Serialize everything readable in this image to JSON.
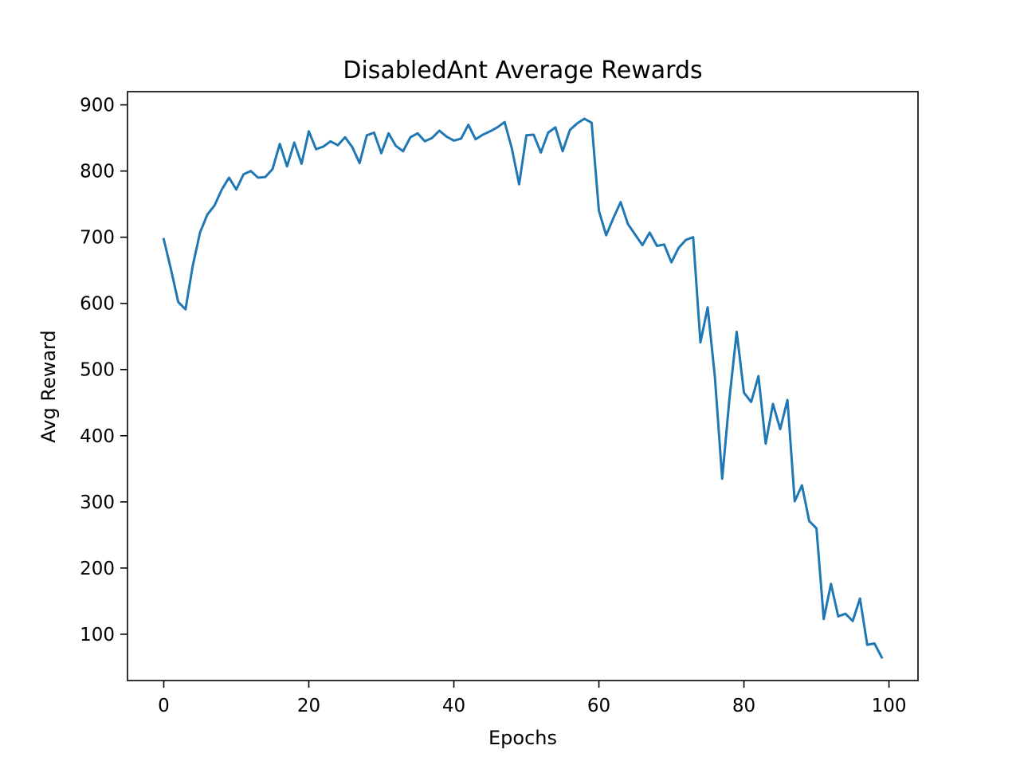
{
  "chart_data": {
    "type": "line",
    "title": "DisabledAnt Average Rewards",
    "xlabel": "Epochs",
    "ylabel": "Avg Reward",
    "xlim": [
      -5,
      104
    ],
    "ylim": [
      30,
      920
    ],
    "xticks": [
      0,
      20,
      40,
      60,
      80,
      100
    ],
    "yticks": [
      100,
      200,
      300,
      400,
      500,
      600,
      700,
      800,
      900
    ],
    "xtick_labels": [
      "0",
      "20",
      "40",
      "60",
      "80",
      "100"
    ],
    "ytick_labels": [
      "100",
      "200",
      "300",
      "400",
      "500",
      "600",
      "700",
      "800",
      "900"
    ],
    "grid": false,
    "series": [
      {
        "name": "Avg Reward",
        "color": "#1f77b4",
        "x": [
          0,
          1,
          2,
          3,
          4,
          5,
          6,
          7,
          8,
          9,
          10,
          11,
          12,
          13,
          14,
          15,
          16,
          17,
          18,
          19,
          20,
          21,
          22,
          23,
          24,
          25,
          26,
          27,
          28,
          29,
          30,
          31,
          32,
          33,
          34,
          35,
          36,
          37,
          38,
          39,
          40,
          41,
          42,
          43,
          44,
          45,
          46,
          47,
          48,
          49,
          50,
          51,
          52,
          53,
          54,
          55,
          56,
          57,
          58,
          59,
          60,
          61,
          62,
          63,
          64,
          65,
          66,
          67,
          68,
          69,
          70,
          71,
          72,
          73,
          74,
          75,
          76,
          77,
          78,
          79,
          80,
          81,
          82,
          83,
          84,
          85,
          86,
          87,
          88,
          89,
          90,
          91,
          92,
          93,
          94,
          95,
          96,
          97,
          98,
          99
        ],
        "values": [
          697,
          651,
          602,
          591,
          657,
          707,
          734,
          748,
          772,
          790,
          772,
          795,
          800,
          790,
          791,
          803,
          841,
          807,
          843,
          811,
          860,
          833,
          837,
          845,
          839,
          851,
          836,
          812,
          854,
          858,
          827,
          857,
          838,
          830,
          851,
          857,
          845,
          850,
          861,
          852,
          846,
          849,
          870,
          848,
          855,
          860,
          866,
          874,
          834,
          780,
          854,
          855,
          828,
          858,
          866,
          830,
          862,
          872,
          879,
          873,
          740,
          703,
          729,
          753,
          720,
          704,
          688,
          707,
          687,
          689,
          662,
          684,
          696,
          700,
          541,
          594,
          488,
          335,
          456,
          557,
          465,
          451,
          490,
          388,
          448,
          410,
          454,
          301,
          325,
          271,
          260,
          123,
          176,
          127,
          131,
          120,
          154,
          84,
          86,
          65
        ]
      }
    ]
  }
}
